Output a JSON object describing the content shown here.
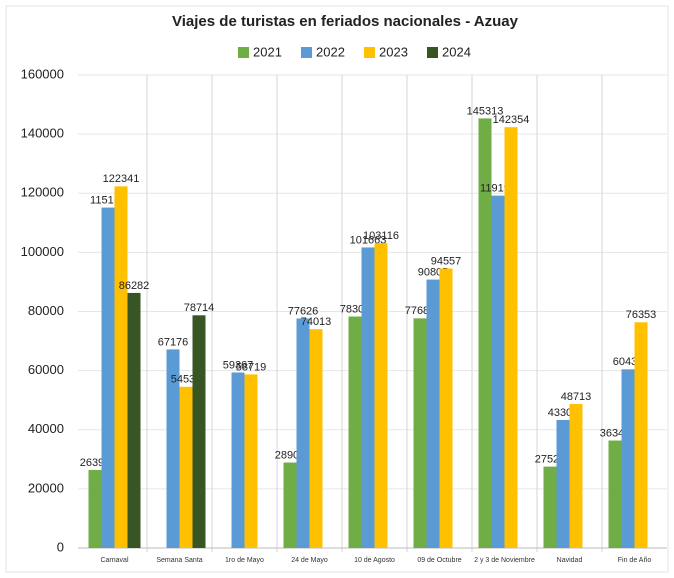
{
  "chart_data": {
    "type": "bar",
    "title": "Viajes de turistas en feriados nacionales - Azuay",
    "categories": [
      "Carnaval",
      "Semana Santa",
      "1ro de Mayo",
      "24 de Mayo",
      "10 de Agosto",
      "09 de Octubre",
      "2 y 3 de Noviembre",
      "Navidad",
      "Fin de Año"
    ],
    "series": [
      {
        "name": "2021",
        "color": "#70ad47",
        "values": [
          26395,
          null,
          null,
          28907,
          78301,
          77685,
          145313,
          27529,
          36348
        ]
      },
      {
        "name": "2022",
        "color": "#5b9bd5",
        "values": [
          115157,
          67176,
          59367,
          77626,
          101663,
          90805,
          119195,
          43307,
          60436
        ]
      },
      {
        "name": "2023",
        "color": "#ffc000",
        "values": [
          122341,
          54533,
          58719,
          74013,
          103116,
          94557,
          142354,
          48713,
          76353
        ]
      },
      {
        "name": "2024",
        "color": "#375623",
        "values": [
          86282,
          78714,
          null,
          null,
          null,
          null,
          null,
          null,
          null
        ]
      }
    ],
    "ylim": [
      0,
      160000
    ],
    "yticks": [
      0,
      20000,
      40000,
      60000,
      80000,
      100000,
      120000,
      140000,
      160000
    ],
    "grid": true,
    "legend": "top"
  }
}
